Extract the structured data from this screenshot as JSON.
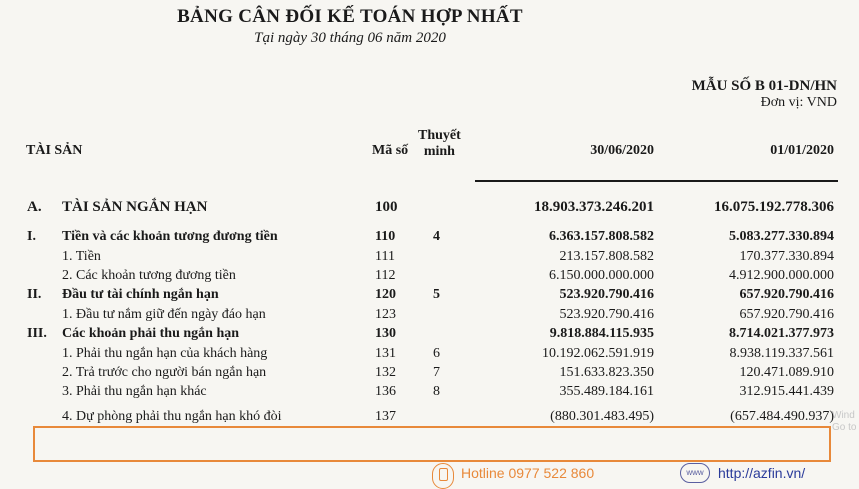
{
  "header": {
    "title": "BẢNG CÂN ĐỐI KẾ TOÁN HỢP NHẤT",
    "subtitle": "Tại ngày 30 tháng 06 năm 2020",
    "form_code": "MẪU SỐ B 01-DN/HN",
    "unit": "Đơn vị: VND"
  },
  "columns": {
    "assets": "TÀI SẢN",
    "code": "Mã số",
    "note_line1": "Thuyết",
    "note_line2": "minh",
    "date1": "30/06/2020",
    "date2": "01/01/2020"
  },
  "rows": [
    {
      "num": "A.",
      "label": "TÀI SẢN NGẮN HẠN",
      "code": "100",
      "note": "",
      "v1": "18.903.373.246.201",
      "v2": "16.075.192.778.306"
    },
    {
      "num": "I.",
      "label": "Tiền và các khoản tương đương tiền",
      "code": "110",
      "note": "4",
      "v1": "6.363.157.808.582",
      "v2": "5.083.277.330.894"
    },
    {
      "num": "",
      "label": "1. Tiền",
      "code": "111",
      "note": "",
      "v1": "213.157.808.582",
      "v2": "170.377.330.894"
    },
    {
      "num": "",
      "label": "2. Các khoản tương đương tiền",
      "code": "112",
      "note": "",
      "v1": "6.150.000.000.000",
      "v2": "4.912.900.000.000"
    },
    {
      "num": "II.",
      "label": "Đầu tư tài chính ngắn hạn",
      "code": "120",
      "note": "5",
      "v1": "523.920.790.416",
      "v2": "657.920.790.416"
    },
    {
      "num": "",
      "label": "1. Đầu tư nắm giữ đến ngày đáo hạn",
      "code": "123",
      "note": "",
      "v1": "523.920.790.416",
      "v2": "657.920.790.416"
    },
    {
      "num": "III.",
      "label": "Các khoản phải thu ngắn hạn",
      "code": "130",
      "note": "",
      "v1": "9.818.884.115.935",
      "v2": "8.714.021.377.973"
    },
    {
      "num": "",
      "label": "1. Phải thu ngắn hạn của khách hàng",
      "code": "131",
      "note": "6",
      "v1": "10.192.062.591.919",
      "v2": "8.938.119.337.561"
    },
    {
      "num": "",
      "label": "2. Trả trước cho người bán ngắn hạn",
      "code": "132",
      "note": "7",
      "v1": "151.633.823.350",
      "v2": "120.471.089.910"
    },
    {
      "num": "",
      "label": "3. Phải thu ngắn hạn khác",
      "code": "136",
      "note": "8",
      "v1": "355.489.184.161",
      "v2": "312.915.441.439"
    },
    {
      "num": "",
      "label": "4. Dự phòng phải thu ngắn hạn khó đòi",
      "code": "137",
      "note": "",
      "v1": "(880.301.483.495)",
      "v2": "(657.484.490.937)"
    }
  ],
  "watermark": {
    "line1": "Wind",
    "line2": "Go to a"
  },
  "footer": {
    "hotline": "Hotline 0977 522 860",
    "www": "www",
    "website": "http://azfin.vn/"
  },
  "colors": {
    "highlight": "#e8893a",
    "link": "#2a3b9a"
  }
}
